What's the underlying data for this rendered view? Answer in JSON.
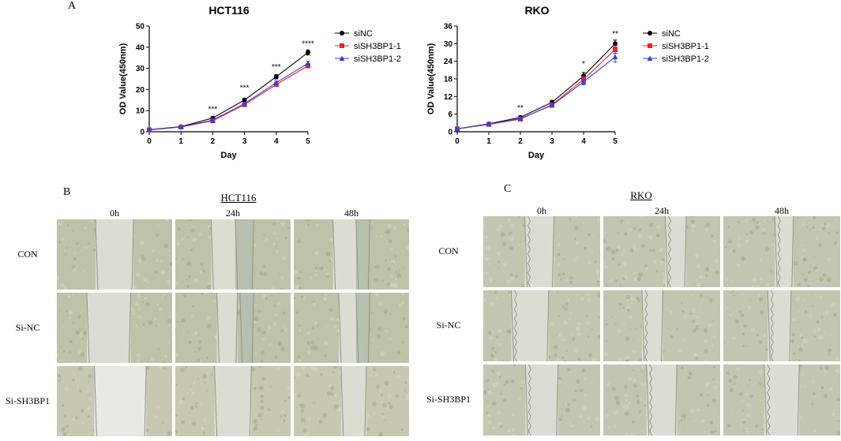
{
  "panels": {
    "a": "A",
    "b": "B",
    "c": "C"
  },
  "colors": {
    "siNC": "#000000",
    "siSH3BP1_1": "#e8242b",
    "siSH3BP1_2": "#3d3ddb"
  },
  "chart_data": [
    {
      "type": "line",
      "title": "HCT116",
      "xlabel": "Day",
      "ylabel": "OD Value(450nm)",
      "xlim": [
        0,
        5
      ],
      "ylim": [
        0,
        50
      ],
      "xticks": [
        0,
        1,
        2,
        3,
        4,
        5
      ],
      "yticks": [
        0,
        10,
        20,
        30,
        40,
        50
      ],
      "x": [
        0,
        1,
        2,
        3,
        4,
        5
      ],
      "series": [
        {
          "name": "siNC",
          "values": [
            1.0,
            2.4,
            6.5,
            15.0,
            26.0,
            37.5
          ],
          "err": [
            0.2,
            0.2,
            0.4,
            0.6,
            1.0,
            1.2
          ],
          "marker": "circle",
          "color": "#000000"
        },
        {
          "name": "siSH3BP1-1",
          "values": [
            0.9,
            2.2,
            5.2,
            12.8,
            22.3,
            31.2
          ],
          "err": [
            0.2,
            0.2,
            0.3,
            0.5,
            0.8,
            1.0
          ],
          "marker": "square",
          "color": "#e8242b"
        },
        {
          "name": "siSH3BP1-2",
          "values": [
            0.9,
            2.3,
            5.5,
            13.3,
            23.2,
            32.3
          ],
          "err": [
            0.2,
            0.2,
            0.3,
            0.5,
            0.8,
            1.0
          ],
          "marker": "triangle",
          "color": "#3d3ddb"
        }
      ],
      "annotations": [
        {
          "x": 2,
          "y": 9.5,
          "text": "***"
        },
        {
          "x": 3,
          "y": 19.5,
          "text": "***"
        },
        {
          "x": 4,
          "y": 29.5,
          "text": "***"
        },
        {
          "x": 5,
          "y": 40.5,
          "text": "****"
        }
      ],
      "legend": "top-right",
      "grid": false
    },
    {
      "type": "line",
      "title": "RKO",
      "xlabel": "Day",
      "ylabel": "OD Value(450nm)",
      "xlim": [
        0,
        5
      ],
      "ylim": [
        0,
        36
      ],
      "xticks": [
        0,
        1,
        2,
        3,
        4,
        5
      ],
      "yticks": [
        0,
        6,
        12,
        18,
        24,
        30,
        36
      ],
      "x": [
        0,
        1,
        2,
        3,
        4,
        5
      ],
      "series": [
        {
          "name": "siNC",
          "values": [
            1.0,
            2.7,
            4.9,
            10.0,
            19.0,
            30.0
          ],
          "err": [
            0.2,
            0.3,
            0.4,
            0.7,
            1.2,
            1.2
          ],
          "marker": "circle",
          "color": "#000000"
        },
        {
          "name": "siSH3BP1-1",
          "values": [
            1.0,
            2.5,
            4.3,
            9.2,
            17.8,
            28.0
          ],
          "err": [
            0.2,
            0.3,
            0.4,
            0.6,
            1.0,
            1.3
          ],
          "marker": "square",
          "color": "#e8242b"
        },
        {
          "name": "siSH3BP1-2",
          "values": [
            1.0,
            2.6,
            4.5,
            9.0,
            17.0,
            25.5
          ],
          "err": [
            0.2,
            0.3,
            0.4,
            0.6,
            1.0,
            1.8
          ],
          "marker": "triangle",
          "color": "#3d3ddb"
        }
      ],
      "annotations": [
        {
          "x": 2,
          "y": 7.2,
          "text": "**"
        },
        {
          "x": 4,
          "y": 22.3,
          "text": "*"
        },
        {
          "x": 5,
          "y": 32.5,
          "text": "**"
        }
      ],
      "legend": "top-right",
      "grid": false
    }
  ],
  "wound_healing": [
    {
      "title": "HCT116",
      "columns": [
        "0h",
        "24h",
        "48h"
      ],
      "rows": [
        "CON",
        "Si-NC",
        "Si-SH3BP1"
      ]
    },
    {
      "title": "RKO",
      "columns": [
        "0h",
        "24h",
        "48h"
      ],
      "rows": [
        "CON",
        "Si-NC",
        "Si-SH3BP1"
      ]
    }
  ]
}
